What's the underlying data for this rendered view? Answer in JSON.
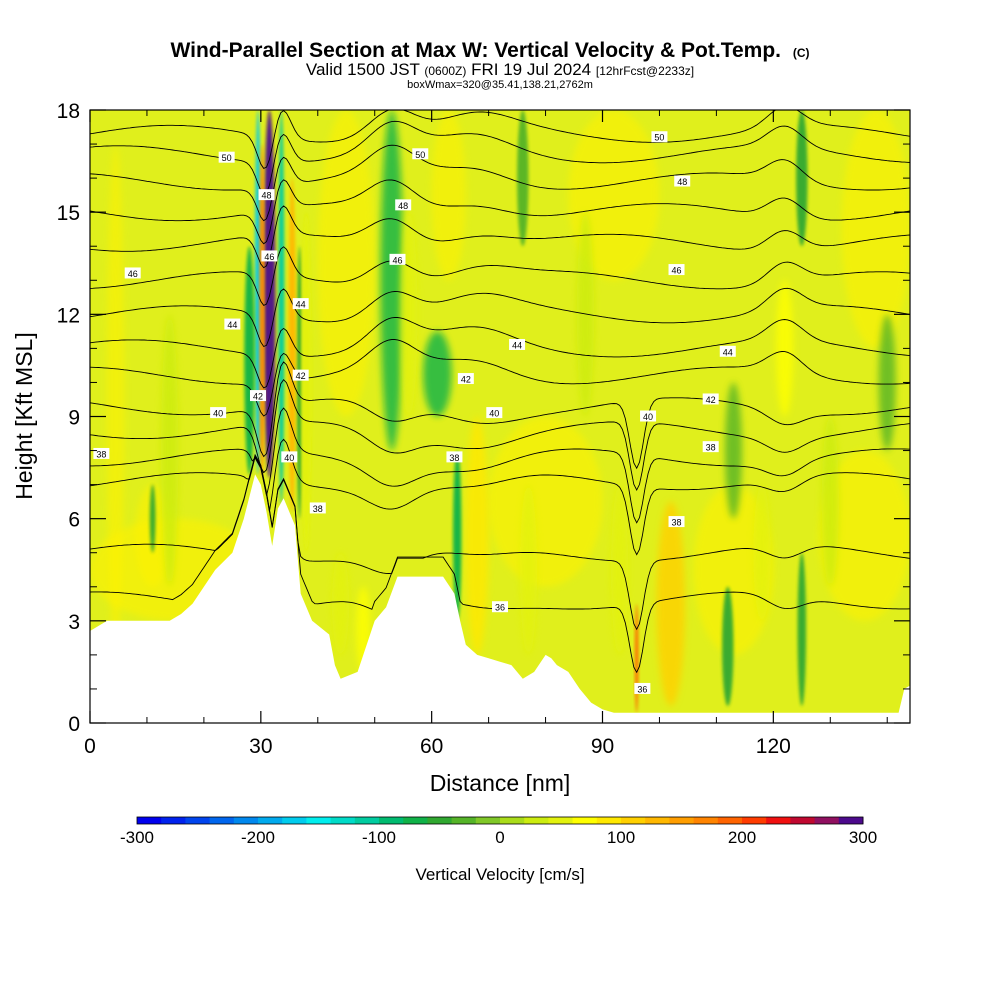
{
  "header": {
    "title_main": "Wind-Parallel Section at Max W: Vertical Velocity & Pot.Temp.",
    "title_mark": "(C)",
    "valid_prefix": "Valid 1500 JST",
    "valid_utc": "(0600Z)",
    "valid_date": "FRI 19 Jul 2024",
    "valid_fcst": "[12hrFcst@2233z]",
    "boxwmax": "boxWmax=320@35.41,138.21,2762m"
  },
  "chart_data": {
    "type": "heatmap",
    "xlabel": "Distance [nm]",
    "ylabel": "Height [Kft MSL]",
    "xlim": [
      0,
      144
    ],
    "ylim": [
      0,
      18
    ],
    "x_ticks": [
      "0",
      "30",
      "60",
      "90",
      "120"
    ],
    "x_tick_values": [
      0,
      30,
      60,
      90,
      120
    ],
    "y_ticks": [
      "0",
      "3",
      "6",
      "9",
      "12",
      "15",
      "18"
    ],
    "y_tick_values": [
      0,
      3,
      6,
      9,
      12,
      15,
      18
    ],
    "terrain_profile": [
      [
        0,
        2.7
      ],
      [
        3,
        3.0
      ],
      [
        8,
        3.0
      ],
      [
        14,
        3.0
      ],
      [
        16,
        3.2
      ],
      [
        18,
        3.5
      ],
      [
        20,
        4.0
      ],
      [
        22,
        4.5
      ],
      [
        25,
        5.0
      ],
      [
        27,
        6.0
      ],
      [
        29,
        7.3
      ],
      [
        30,
        7.0
      ],
      [
        31,
        6.2
      ],
      [
        32,
        5.2
      ],
      [
        33,
        6.3
      ],
      [
        34,
        6.6
      ],
      [
        36,
        5.8
      ],
      [
        37,
        3.8
      ],
      [
        39,
        3.0
      ],
      [
        42,
        2.6
      ],
      [
        43,
        1.7
      ],
      [
        44,
        1.3
      ],
      [
        47,
        1.5
      ],
      [
        48,
        2.0
      ],
      [
        50,
        3.0
      ],
      [
        52,
        3.4
      ],
      [
        54,
        4.3
      ],
      [
        62,
        4.3
      ],
      [
        64,
        3.8
      ],
      [
        65,
        3.0
      ],
      [
        66,
        2.3
      ],
      [
        68,
        2.0
      ],
      [
        70,
        1.9
      ],
      [
        72,
        1.8
      ],
      [
        74,
        1.7
      ],
      [
        76,
        1.3
      ],
      [
        78,
        1.5
      ],
      [
        80,
        2.0
      ],
      [
        81,
        1.9
      ],
      [
        82,
        1.7
      ],
      [
        84,
        1.5
      ],
      [
        86,
        1.0
      ],
      [
        88,
        0.6
      ],
      [
        90,
        0.4
      ],
      [
        92,
        0.3
      ],
      [
        96,
        0.3
      ],
      [
        100,
        0.3
      ],
      [
        108,
        0.3
      ],
      [
        125,
        0.3
      ],
      [
        142,
        0.3
      ],
      [
        143,
        1.0
      ],
      [
        144,
        1.1
      ]
    ],
    "isentrope_labels": [
      {
        "text": "50",
        "x": 24,
        "y": 16.6
      },
      {
        "text": "50",
        "x": 58,
        "y": 16.7
      },
      {
        "text": "50",
        "x": 100,
        "y": 17.2
      },
      {
        "text": "48",
        "x": 31,
        "y": 15.5
      },
      {
        "text": "48",
        "x": 55,
        "y": 15.2
      },
      {
        "text": "48",
        "x": 104,
        "y": 15.9
      },
      {
        "text": "46",
        "x": 7.5,
        "y": 13.2
      },
      {
        "text": "46",
        "x": 31.5,
        "y": 13.7
      },
      {
        "text": "46",
        "x": 54,
        "y": 13.6
      },
      {
        "text": "46",
        "x": 103,
        "y": 13.3
      },
      {
        "text": "44",
        "x": 25,
        "y": 11.7
      },
      {
        "text": "44",
        "x": 37,
        "y": 12.3
      },
      {
        "text": "44",
        "x": 75,
        "y": 11.1
      },
      {
        "text": "44",
        "x": 112,
        "y": 10.9
      },
      {
        "text": "42",
        "x": 29.5,
        "y": 9.6
      },
      {
        "text": "42",
        "x": 37,
        "y": 10.2
      },
      {
        "text": "42",
        "x": 66,
        "y": 10.1
      },
      {
        "text": "42",
        "x": 109,
        "y": 9.5
      },
      {
        "text": "40",
        "x": 22.5,
        "y": 9.1
      },
      {
        "text": "40",
        "x": 35,
        "y": 7.8
      },
      {
        "text": "40",
        "x": 71,
        "y": 9.1
      },
      {
        "text": "40",
        "x": 98,
        "y": 9.0
      },
      {
        "text": "38",
        "x": 2,
        "y": 7.9
      },
      {
        "text": "38",
        "x": 64,
        "y": 7.8
      },
      {
        "text": "38",
        "x": 109,
        "y": 8.1
      },
      {
        "text": "38",
        "x": 40,
        "y": 6.3
      },
      {
        "text": "38",
        "x": 103,
        "y": 5.9
      },
      {
        "text": "36",
        "x": 72,
        "y": 3.4
      },
      {
        "text": "36",
        "x": 97,
        "y": 1.0
      }
    ],
    "isentrope_levels": [
      50,
      49,
      48,
      47,
      46,
      45,
      44,
      43,
      42,
      41,
      40,
      39,
      38,
      37,
      36
    ],
    "isentrope_heights_west": [
      17.3,
      16.7,
      15.9,
      15.0,
      14.1,
      13.0,
      12.0,
      11.0,
      10.2,
      9.3,
      8.6,
      7.8,
      7.1,
      5.0,
      3.6
    ],
    "updraft_features": [
      {
        "x": 31.5,
        "w": 2.1,
        "ymin": 7.2,
        "ymax": 18,
        "value": 300
      },
      {
        "x": 30.2,
        "w": 0.9,
        "ymin": 7.2,
        "ymax": 17,
        "value": 170
      },
      {
        "x": 35.5,
        "w": 1.3,
        "ymin": 6.2,
        "ymax": 16,
        "value": 130
      },
      {
        "x": 38,
        "w": 1.8,
        "ymin": 5,
        "ymax": 15,
        "value": 45
      },
      {
        "x": 44,
        "w": 3,
        "ymin": 2,
        "ymax": 5,
        "value": 40
      },
      {
        "x": 48,
        "w": 2.5,
        "ymin": 1.5,
        "ymax": 4,
        "value": 70
      },
      {
        "x": 56,
        "w": 3,
        "ymin": 9,
        "ymax": 15,
        "value": 50
      },
      {
        "x": 68,
        "w": 4,
        "ymin": 2,
        "ymax": 9,
        "value": 90
      },
      {
        "x": 77,
        "w": 3,
        "ymin": 2,
        "ymax": 7,
        "value": 40
      },
      {
        "x": 102,
        "w": 5,
        "ymin": 0.5,
        "ymax": 6.5,
        "value": 110
      },
      {
        "x": 96,
        "w": 0.6,
        "ymin": 0.3,
        "ymax": 3.5,
        "value": 180
      },
      {
        "x": 93,
        "w": 3,
        "ymin": 2,
        "ymax": 7,
        "value": 40
      },
      {
        "x": 122,
        "w": 3,
        "ymin": 9,
        "ymax": 13,
        "value": 60
      },
      {
        "x": 118,
        "w": 3,
        "ymin": 3,
        "ymax": 7,
        "value": 40
      },
      {
        "x": 14,
        "w": 3,
        "ymin": 4,
        "ymax": 12,
        "value": 25
      },
      {
        "x": 87,
        "w": 3,
        "ymin": 9,
        "ymax": 15,
        "value": 30
      },
      {
        "x": 130,
        "w": 3,
        "ymin": 4,
        "ymax": 9,
        "value": 30
      }
    ],
    "downdraft_features": [
      {
        "x": 29.5,
        "w": 1.1,
        "ymin": 7.3,
        "ymax": 18,
        "value": -180
      },
      {
        "x": 33.6,
        "w": 1.1,
        "ymin": 6.4,
        "ymax": 18,
        "value": -110
      },
      {
        "x": 28,
        "w": 1.8,
        "ymin": 7.3,
        "ymax": 14,
        "value": -70
      },
      {
        "x": 53,
        "w": 4,
        "ymin": 8,
        "ymax": 18,
        "value": -65
      },
      {
        "x": 61,
        "w": 5,
        "ymin": 9,
        "ymax": 11.5,
        "value": -70
      },
      {
        "x": 64.5,
        "w": 1.5,
        "ymin": 3,
        "ymax": 8,
        "value": -80
      },
      {
        "x": 36.8,
        "w": 1,
        "ymin": 6,
        "ymax": 14,
        "value": -60
      },
      {
        "x": 125,
        "w": 1.5,
        "ymin": 0.5,
        "ymax": 5,
        "value": -60
      },
      {
        "x": 113,
        "w": 3,
        "ymin": 6,
        "ymax": 10,
        "value": -40
      },
      {
        "x": 112,
        "w": 2,
        "ymin": 0.5,
        "ymax": 4,
        "value": -50
      },
      {
        "x": 125,
        "w": 2,
        "ymin": 14,
        "ymax": 18,
        "value": -50
      },
      {
        "x": 140,
        "w": 3,
        "ymin": 8,
        "ymax": 12,
        "value": -30
      },
      {
        "x": 11,
        "w": 1,
        "ymin": 5,
        "ymax": 7,
        "value": -50
      },
      {
        "x": 76,
        "w": 2,
        "ymin": 14,
        "ymax": 18,
        "value": -25
      }
    ],
    "colorbar": {
      "label": "Vertical Velocity [cm/s]",
      "ticks": [
        "-300",
        "-200",
        "-100",
        "0",
        "100",
        "200",
        "300"
      ],
      "tick_values": [
        -300,
        -200,
        -100,
        0,
        100,
        200,
        300
      ],
      "bins": 30,
      "colors": [
        "#0000ee",
        "#0022ee",
        "#0044ee",
        "#0066ee",
        "#0088ee",
        "#00aaee",
        "#00ccee",
        "#00eeee",
        "#00dbc8",
        "#00cca0",
        "#00bb70",
        "#10b248",
        "#30a830",
        "#55b428",
        "#80c828",
        "#aadc1a",
        "#ccec10",
        "#e3f20e",
        "#ffff00",
        "#ffe800",
        "#ffd000",
        "#ffb800",
        "#ff9e00",
        "#ff8400",
        "#ff6400",
        "#ff3c00",
        "#f01010",
        "#c00830",
        "#901060",
        "#4c0a8c"
      ]
    }
  }
}
